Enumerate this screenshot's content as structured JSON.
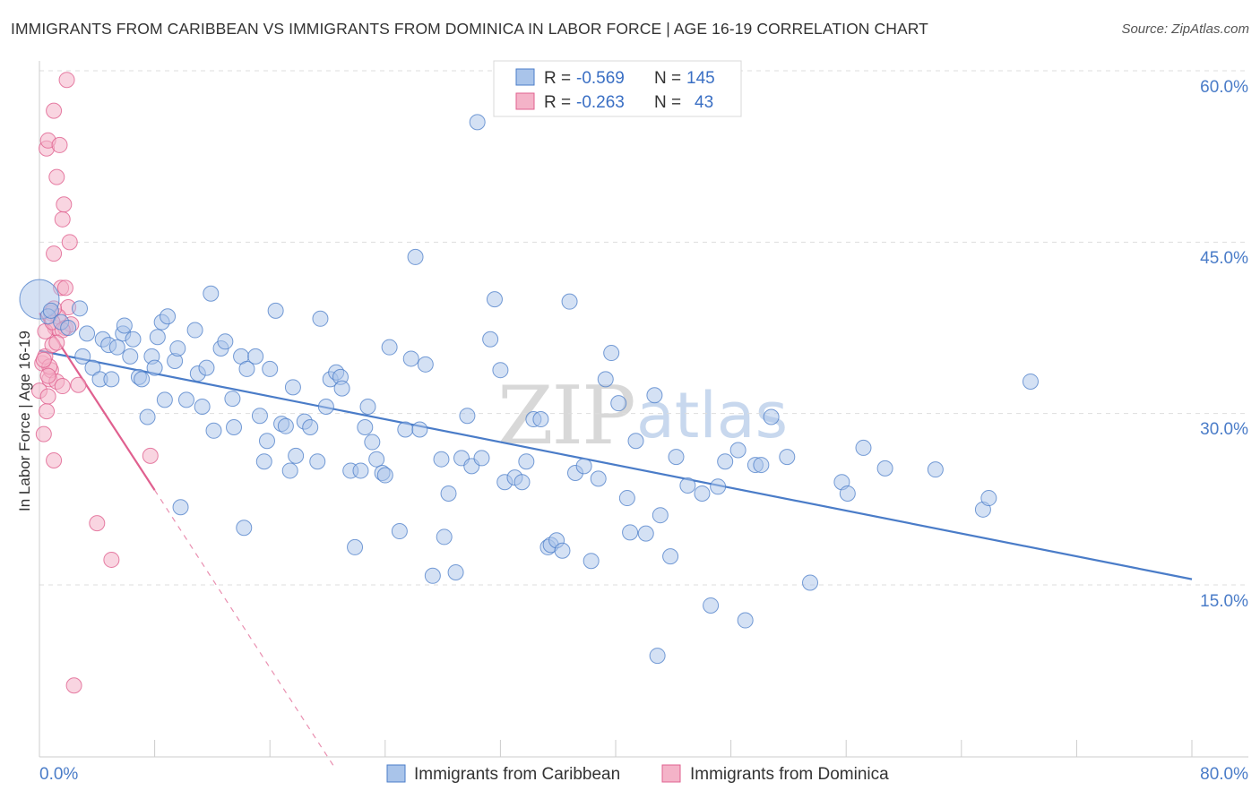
{
  "title": "IMMIGRANTS FROM CARIBBEAN VS IMMIGRANTS FROM DOMINICA IN LABOR FORCE | AGE 16-19 CORRELATION CHART",
  "source": "Source: ZipAtlas.com",
  "watermark": {
    "zip": "ZIP",
    "atlas": "atlas"
  },
  "colors": {
    "blue": "#4a7cc8",
    "blue_fill": "#a9c4ea",
    "pink": "#e0608f",
    "pink_fill": "#f4b3c8"
  },
  "legend": {
    "r_label": "R =",
    "n_label": "N =",
    "rows": [
      {
        "r": "-0.569",
        "n": "145"
      },
      {
        "r": "-0.263",
        "n": "43"
      }
    ]
  },
  "chart_data": {
    "type": "scatter",
    "title": "IMMIGRANTS FROM CARIBBEAN VS IMMIGRANTS FROM DOMINICA IN LABOR FORCE | AGE 16-19 CORRELATION CHART",
    "xlabel": "",
    "ylabel": "In Labor Force | Age 16-19",
    "xlim": [
      0,
      80
    ],
    "ylim": [
      0,
      62
    ],
    "x_tick_labels": [
      "0.0%",
      "80.0%"
    ],
    "y_ticks": [
      15,
      30,
      45,
      60
    ],
    "y_tick_labels": [
      "15.0%",
      "30.0%",
      "45.0%",
      "60.0%"
    ],
    "legend_labels": [
      "Immigrants from Caribbean",
      "Immigrants from Dominica"
    ],
    "series": [
      {
        "name": "Immigrants from Caribbean",
        "trend": {
          "x": [
            0,
            80
          ],
          "y": [
            35.5,
            15.5
          ]
        },
        "points": [
          [
            0,
            40
          ],
          [
            0.6,
            38.5
          ],
          [
            0.8,
            39
          ],
          [
            1.5,
            38
          ],
          [
            2,
            37.5
          ],
          [
            2.8,
            39.2
          ],
          [
            3.3,
            37
          ],
          [
            3.7,
            34
          ],
          [
            4.2,
            33
          ],
          [
            4.4,
            36.5
          ],
          [
            3,
            35
          ],
          [
            4.8,
            36
          ],
          [
            5,
            33
          ],
          [
            5.4,
            35.8
          ],
          [
            5.8,
            37
          ],
          [
            5.9,
            37.7
          ],
          [
            6.5,
            36.5
          ],
          [
            6.3,
            35
          ],
          [
            6.9,
            33.2
          ],
          [
            7.1,
            33
          ],
          [
            7.5,
            29.7
          ],
          [
            7.8,
            35
          ],
          [
            8.0,
            34
          ],
          [
            8.2,
            36.7
          ],
          [
            8.5,
            38
          ],
          [
            8.7,
            31.2
          ],
          [
            8.9,
            38.5
          ],
          [
            9.4,
            34.6
          ],
          [
            9.8,
            21.8
          ],
          [
            9.6,
            35.7
          ],
          [
            10.2,
            31.2
          ],
          [
            10.8,
            37.3
          ],
          [
            11.0,
            33.5
          ],
          [
            11.3,
            30.6
          ],
          [
            11.6,
            34
          ],
          [
            11.9,
            40.5
          ],
          [
            12.1,
            28.5
          ],
          [
            12.6,
            35.7
          ],
          [
            12.9,
            36.3
          ],
          [
            13.4,
            31.3
          ],
          [
            13.5,
            28.8
          ],
          [
            14.0,
            35
          ],
          [
            14.2,
            20
          ],
          [
            14.4,
            33.9
          ],
          [
            15.0,
            35
          ],
          [
            15.3,
            29.8
          ],
          [
            15.6,
            25.8
          ],
          [
            15.8,
            27.6
          ],
          [
            16.0,
            33.9
          ],
          [
            16.4,
            39
          ],
          [
            16.8,
            29.1
          ],
          [
            17.1,
            28.9
          ],
          [
            17.4,
            25
          ],
          [
            17.6,
            32.3
          ],
          [
            17.8,
            26.3
          ],
          [
            18.4,
            29.3
          ],
          [
            18.8,
            28.8
          ],
          [
            19.3,
            25.8
          ],
          [
            19.5,
            38.3
          ],
          [
            19.9,
            30.6
          ],
          [
            20.2,
            33
          ],
          [
            20.6,
            33.6
          ],
          [
            20.9,
            33.2
          ],
          [
            21.0,
            32.2
          ],
          [
            21.6,
            25
          ],
          [
            21.9,
            18.3
          ],
          [
            22.3,
            25
          ],
          [
            22.6,
            28.8
          ],
          [
            22.8,
            30.6
          ],
          [
            23.1,
            27.5
          ],
          [
            23.4,
            26
          ],
          [
            23.8,
            24.8
          ],
          [
            24.0,
            24.6
          ],
          [
            24.3,
            35.8
          ],
          [
            25.0,
            19.7
          ],
          [
            25.4,
            28.6
          ],
          [
            25.8,
            34.8
          ],
          [
            26.1,
            43.7
          ],
          [
            26.4,
            28.6
          ],
          [
            26.8,
            34.3
          ],
          [
            27.3,
            15.8
          ],
          [
            27.9,
            26
          ],
          [
            28.1,
            19.2
          ],
          [
            28.4,
            23
          ],
          [
            28.9,
            16.1
          ],
          [
            29.3,
            26.1
          ],
          [
            29.7,
            29.8
          ],
          [
            30.0,
            25.4
          ],
          [
            30.4,
            55.5
          ],
          [
            30.7,
            26.1
          ],
          [
            31.3,
            36.5
          ],
          [
            32.0,
            33.8
          ],
          [
            32.3,
            24
          ],
          [
            33.0,
            24.4
          ],
          [
            31.6,
            40
          ],
          [
            33.5,
            24
          ],
          [
            33.8,
            25.8
          ],
          [
            34.3,
            29.5
          ],
          [
            34.8,
            29.5
          ],
          [
            35.3,
            18.3
          ],
          [
            35.5,
            18.5
          ],
          [
            35.9,
            18.9
          ],
          [
            36.3,
            18
          ],
          [
            36.8,
            39.8
          ],
          [
            37.2,
            24.8
          ],
          [
            37.8,
            25.4
          ],
          [
            38.3,
            17.1
          ],
          [
            38.8,
            24.3
          ],
          [
            39.3,
            33
          ],
          [
            39.7,
            35.3
          ],
          [
            40.2,
            30.9
          ],
          [
            40.8,
            22.6
          ],
          [
            41.0,
            19.6
          ],
          [
            41.4,
            27.6
          ],
          [
            42.1,
            19.5
          ],
          [
            42.7,
            31.6
          ],
          [
            43.1,
            21.1
          ],
          [
            43.8,
            17.5
          ],
          [
            44.2,
            26.2
          ],
          [
            45.0,
            23.7
          ],
          [
            46.0,
            23
          ],
          [
            46.6,
            13.2
          ],
          [
            47.1,
            23.6
          ],
          [
            47.6,
            25.8
          ],
          [
            48.5,
            26.8
          ],
          [
            49.0,
            11.9
          ],
          [
            49.7,
            25.5
          ],
          [
            50.1,
            25.5
          ],
          [
            50.8,
            29.7
          ],
          [
            51.9,
            26.2
          ],
          [
            53.5,
            15.2
          ],
          [
            55.7,
            24
          ],
          [
            56.1,
            23
          ],
          [
            57.2,
            27
          ],
          [
            58.7,
            25.2
          ],
          [
            62.2,
            25.1
          ],
          [
            65.5,
            21.6
          ],
          [
            65.9,
            22.6
          ],
          [
            68.8,
            32.8
          ],
          [
            42.9,
            8.8
          ]
        ]
      },
      {
        "name": "Immigrants from Dominica",
        "trend": {
          "x": [
            0,
            8
          ],
          "y": [
            38.8,
            23.3
          ]
        },
        "trend_dashed": {
          "x": [
            8,
            20.5
          ],
          "y": [
            23.3,
            -1
          ]
        },
        "points": [
          [
            0,
            32
          ],
          [
            0.2,
            34.4
          ],
          [
            0.3,
            28.2
          ],
          [
            0.4,
            35
          ],
          [
            0.5,
            30.2
          ],
          [
            0.6,
            31.5
          ],
          [
            0.7,
            33
          ],
          [
            0.8,
            33.8
          ],
          [
            0.9,
            36
          ],
          [
            1.0,
            25.9
          ],
          [
            1.1,
            37.5
          ],
          [
            1.2,
            32.8
          ],
          [
            0.5,
            53.2
          ],
          [
            0.6,
            53.9
          ],
          [
            1.0,
            56.5
          ],
          [
            1.2,
            50.7
          ],
          [
            1.4,
            53.5
          ],
          [
            1.6,
            47
          ],
          [
            1.7,
            48.3
          ],
          [
            2.1,
            45
          ],
          [
            1.0,
            44
          ],
          [
            1.5,
            41
          ],
          [
            1.8,
            41
          ],
          [
            2.0,
            39.3
          ],
          [
            0.8,
            38.8
          ],
          [
            1.3,
            38.5
          ],
          [
            1.8,
            37.5
          ],
          [
            2.2,
            37.8
          ],
          [
            0.4,
            37.2
          ],
          [
            0.9,
            38
          ],
          [
            1.6,
            37.3
          ],
          [
            1.0,
            39.2
          ],
          [
            1.6,
            32.4
          ],
          [
            2.7,
            32.5
          ],
          [
            0.7,
            34.1
          ],
          [
            1.9,
            59.2
          ],
          [
            7.7,
            26.3
          ],
          [
            4.0,
            20.4
          ],
          [
            5.0,
            17.2
          ],
          [
            2.4,
            6.2
          ],
          [
            1.2,
            36.2
          ],
          [
            0.3,
            34.7
          ],
          [
            0.6,
            33.3
          ]
        ]
      }
    ]
  }
}
